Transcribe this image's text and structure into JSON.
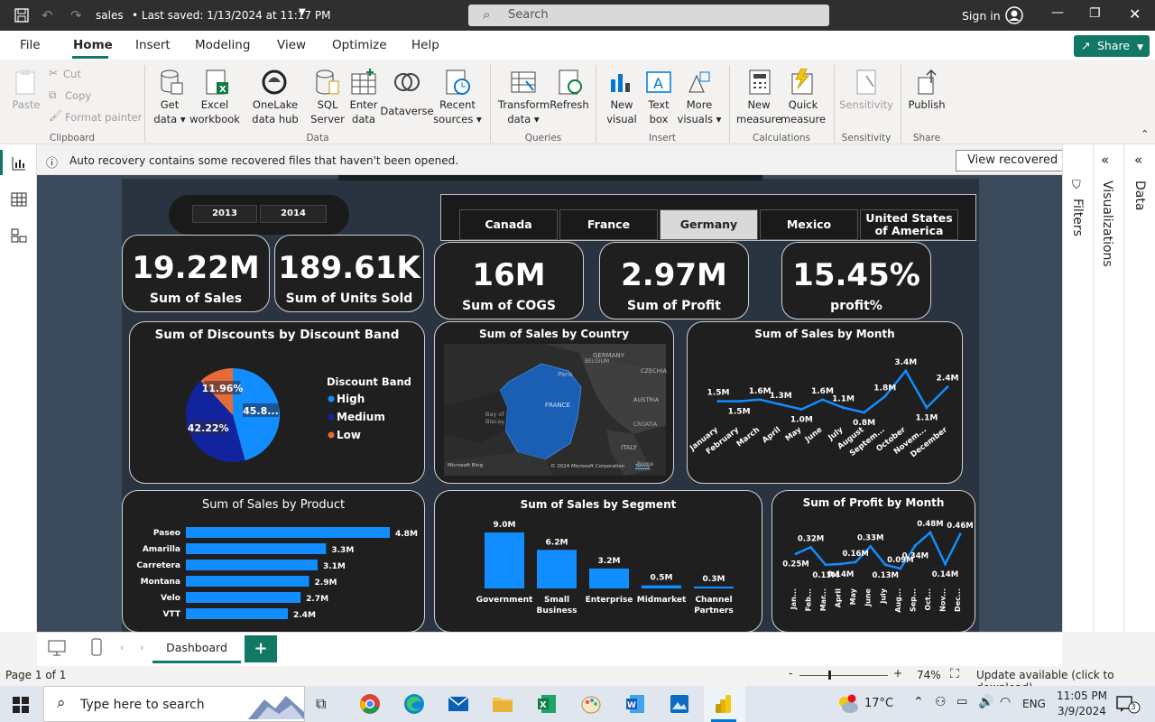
{
  "titlebar": {
    "file_name": "sales",
    "saved_status": "• Last saved: 1/13/2024 at 11:17 PM",
    "search_placeholder": "Search",
    "sign_in": "Sign in"
  },
  "menu": {
    "items": [
      "File",
      "Home",
      "Insert",
      "Modeling",
      "View",
      "Optimize",
      "Help"
    ],
    "share": "Share"
  },
  "ribbon": {
    "clipboard": {
      "paste": "Paste",
      "cut": "Cut",
      "copy": "Copy",
      "format_painter": "Format painter",
      "group": "Clipboard"
    },
    "data": {
      "get_data": "Get data",
      "excel_workbook": "Excel workbook",
      "onelake": "OneLake data hub",
      "sql_server": "SQL Server",
      "enter_data": "Enter data",
      "dataverse": "Dataverse",
      "recent_sources": "Recent sources",
      "group": "Data"
    },
    "queries": {
      "transform": "Transform data",
      "refresh": "Refresh",
      "group": "Queries"
    },
    "insert": {
      "new_visual": "New visual",
      "text_box": "Text box",
      "more_visuals": "More visuals",
      "group": "Insert"
    },
    "calculations": {
      "new_measure": "New measure",
      "quick_measure": "Quick measure",
      "group": "Calculations"
    },
    "sensitivity": {
      "label": "Sensitivity",
      "group": "Sensitivity"
    },
    "share": {
      "publish": "Publish",
      "group": "Share"
    }
  },
  "infobar": {
    "message": "Auto recovery contains some recovered files that haven't been opened.",
    "button": "View recovered files"
  },
  "panes": {
    "filters": "Filters",
    "visualizations": "Visualizations",
    "data": "Data"
  },
  "report": {
    "years": [
      "2013",
      "2014"
    ],
    "countries": [
      "Canada",
      "France",
      "Germany",
      "Mexico",
      "United States of America"
    ],
    "selected_country": "Germany",
    "kpis": [
      {
        "value": "19.22M",
        "label": "Sum of Sales"
      },
      {
        "value": "189.61K",
        "label": "Sum of Units Sold"
      },
      {
        "value": "16M",
        "label": "Sum of COGS"
      },
      {
        "value": "2.97M",
        "label": "Sum of Profit"
      },
      {
        "value": "15.45%",
        "label": "profit%"
      }
    ],
    "map": {
      "title": "Sum of Sales by Country",
      "labels": {
        "germany": "GERMANY",
        "czechia": "CZECHIA",
        "austria": "AUSTRIA",
        "france": "FRANCE",
        "italy": "ITALY",
        "bay": "Bay of Biscay",
        "paris": "Paris",
        "belgium": "BELGIUM",
        "croatia": "CROATIA",
        "rome": "Rome"
      },
      "bing": "Microsoft Bing",
      "copyright": "© 2024 Microsoft Corporation",
      "terms": "Terms"
    }
  },
  "chart_data": [
    {
      "type": "pie",
      "title": "Sum of Discounts by Discount Band",
      "legend_title": "Discount Band",
      "legend_position": "right",
      "categories": [
        "High",
        "Medium",
        "Low"
      ],
      "values": [
        45.82,
        42.22,
        11.96
      ],
      "data_labels": [
        "45.8...",
        "42.22%",
        "11.96%"
      ],
      "colors": [
        "#118dff",
        "#12239e",
        "#e66c37"
      ]
    },
    {
      "type": "line",
      "title": "Sum of Sales by Month",
      "categories": [
        "January",
        "February",
        "March",
        "April",
        "May",
        "June",
        "July",
        "August",
        "Septem...",
        "October",
        "Novem...",
        "December"
      ],
      "values": [
        1.5,
        1.5,
        1.6,
        1.3,
        1.0,
        1.6,
        1.1,
        0.8,
        1.8,
        3.4,
        1.1,
        2.4
      ],
      "data_labels": [
        "1.5M",
        "1.5M",
        "1.6M",
        "1.3M",
        "1.0M",
        "1.6M",
        "1.1M",
        "0.8M",
        "1.8M",
        "3.4M",
        "1.1M",
        "2.4M"
      ],
      "color": "#118dff"
    },
    {
      "type": "bar",
      "orientation": "horizontal",
      "title": "Sum of Sales by Product",
      "categories": [
        "Paseo",
        "Amarilla",
        "Carretera",
        "Montana",
        "Velo",
        "VTT"
      ],
      "values": [
        4.8,
        3.3,
        3.1,
        2.9,
        2.7,
        2.4
      ],
      "data_labels": [
        "4.8M",
        "3.3M",
        "3.1M",
        "2.9M",
        "2.7M",
        "2.4M"
      ],
      "color": "#118dff"
    },
    {
      "type": "bar",
      "title": "Sum of Sales by Segment",
      "categories": [
        "Government",
        "Small Business",
        "Enterprise",
        "Midmarket",
        "Channel Partners"
      ],
      "values": [
        9.0,
        6.2,
        3.2,
        0.5,
        0.3
      ],
      "data_labels": [
        "9.0M",
        "6.2M",
        "3.2M",
        "0.5M",
        "0.3M"
      ],
      "color": "#118dff"
    },
    {
      "type": "line",
      "title": "Sum of Profit by Month",
      "categories": [
        "Jan...",
        "Feb...",
        "Mar...",
        "April",
        "May",
        "June",
        "July",
        "Aug...",
        "Sep...",
        "Oct...",
        "Nov...",
        "Dec..."
      ],
      "values": [
        0.25,
        0.32,
        0.13,
        0.14,
        0.16,
        0.33,
        0.13,
        0.09,
        0.34,
        0.48,
        0.14,
        0.46
      ],
      "data_labels": [
        "0.25M",
        "0.32M",
        "0.13M",
        "0.14M",
        "0.16M",
        "0.33M",
        "0.13M",
        "0.09M",
        "0.34M",
        "0.48M",
        "0.14M",
        "0.46M"
      ],
      "color": "#118dff"
    }
  ],
  "pagetabs": {
    "tabs": [
      "Dashboard"
    ],
    "add": "+"
  },
  "status": {
    "page": "Page 1 of 1",
    "zoom": "74%",
    "update": "Update available (click to download)"
  },
  "taskbar": {
    "search_placeholder": "Type here to search",
    "temperature": "17°C",
    "language": "ENG",
    "time": "11:05 PM",
    "date": "3/9/2024",
    "notifications": "3"
  }
}
